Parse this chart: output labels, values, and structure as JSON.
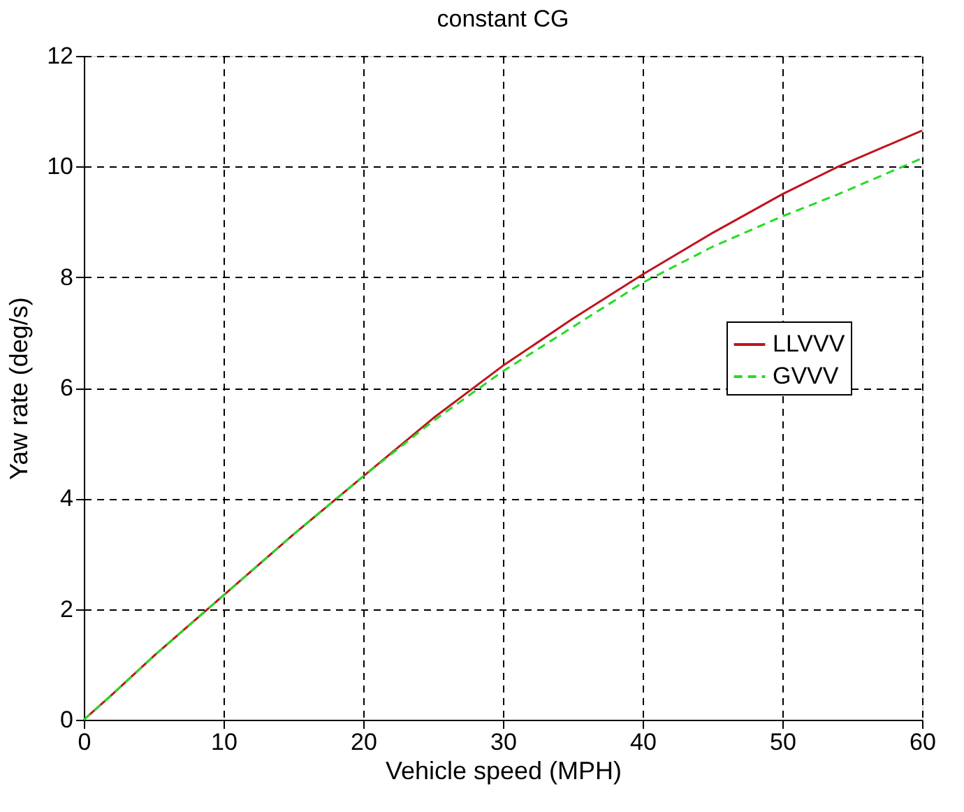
{
  "chart_data": {
    "type": "line",
    "title": "constant CG",
    "xlabel": "Vehicle speed (MPH)",
    "ylabel": "Yaw rate (deg/s)",
    "xlim": [
      0,
      60
    ],
    "ylim": [
      0,
      12
    ],
    "xticks": [
      0,
      10,
      20,
      30,
      40,
      50,
      60
    ],
    "yticks": [
      0,
      2,
      4,
      6,
      8,
      10,
      12
    ],
    "grid": true,
    "legend": "right",
    "marker": "none",
    "series": [
      {
        "name": "LLVVV",
        "color": "#c0141e",
        "line_style": "solid",
        "x": [
          0,
          2,
          5,
          10,
          15,
          20,
          25,
          30,
          35,
          40,
          45,
          50,
          54,
          60
        ],
        "values": [
          0,
          0.45,
          1.15,
          2.25,
          3.35,
          4.4,
          5.45,
          6.4,
          7.25,
          8.05,
          8.8,
          9.5,
          10,
          10.65
        ]
      },
      {
        "name": "GVVV",
        "color": "#22dd22",
        "line_style": "dashed",
        "x": [
          0,
          2,
          5,
          10,
          15,
          20,
          25,
          30,
          35,
          40,
          45,
          50,
          54,
          60
        ],
        "values": [
          0,
          0.45,
          1.15,
          2.25,
          3.35,
          4.4,
          5.4,
          6.3,
          7.1,
          7.9,
          8.55,
          9.1,
          9.5,
          10.15
        ]
      }
    ]
  }
}
